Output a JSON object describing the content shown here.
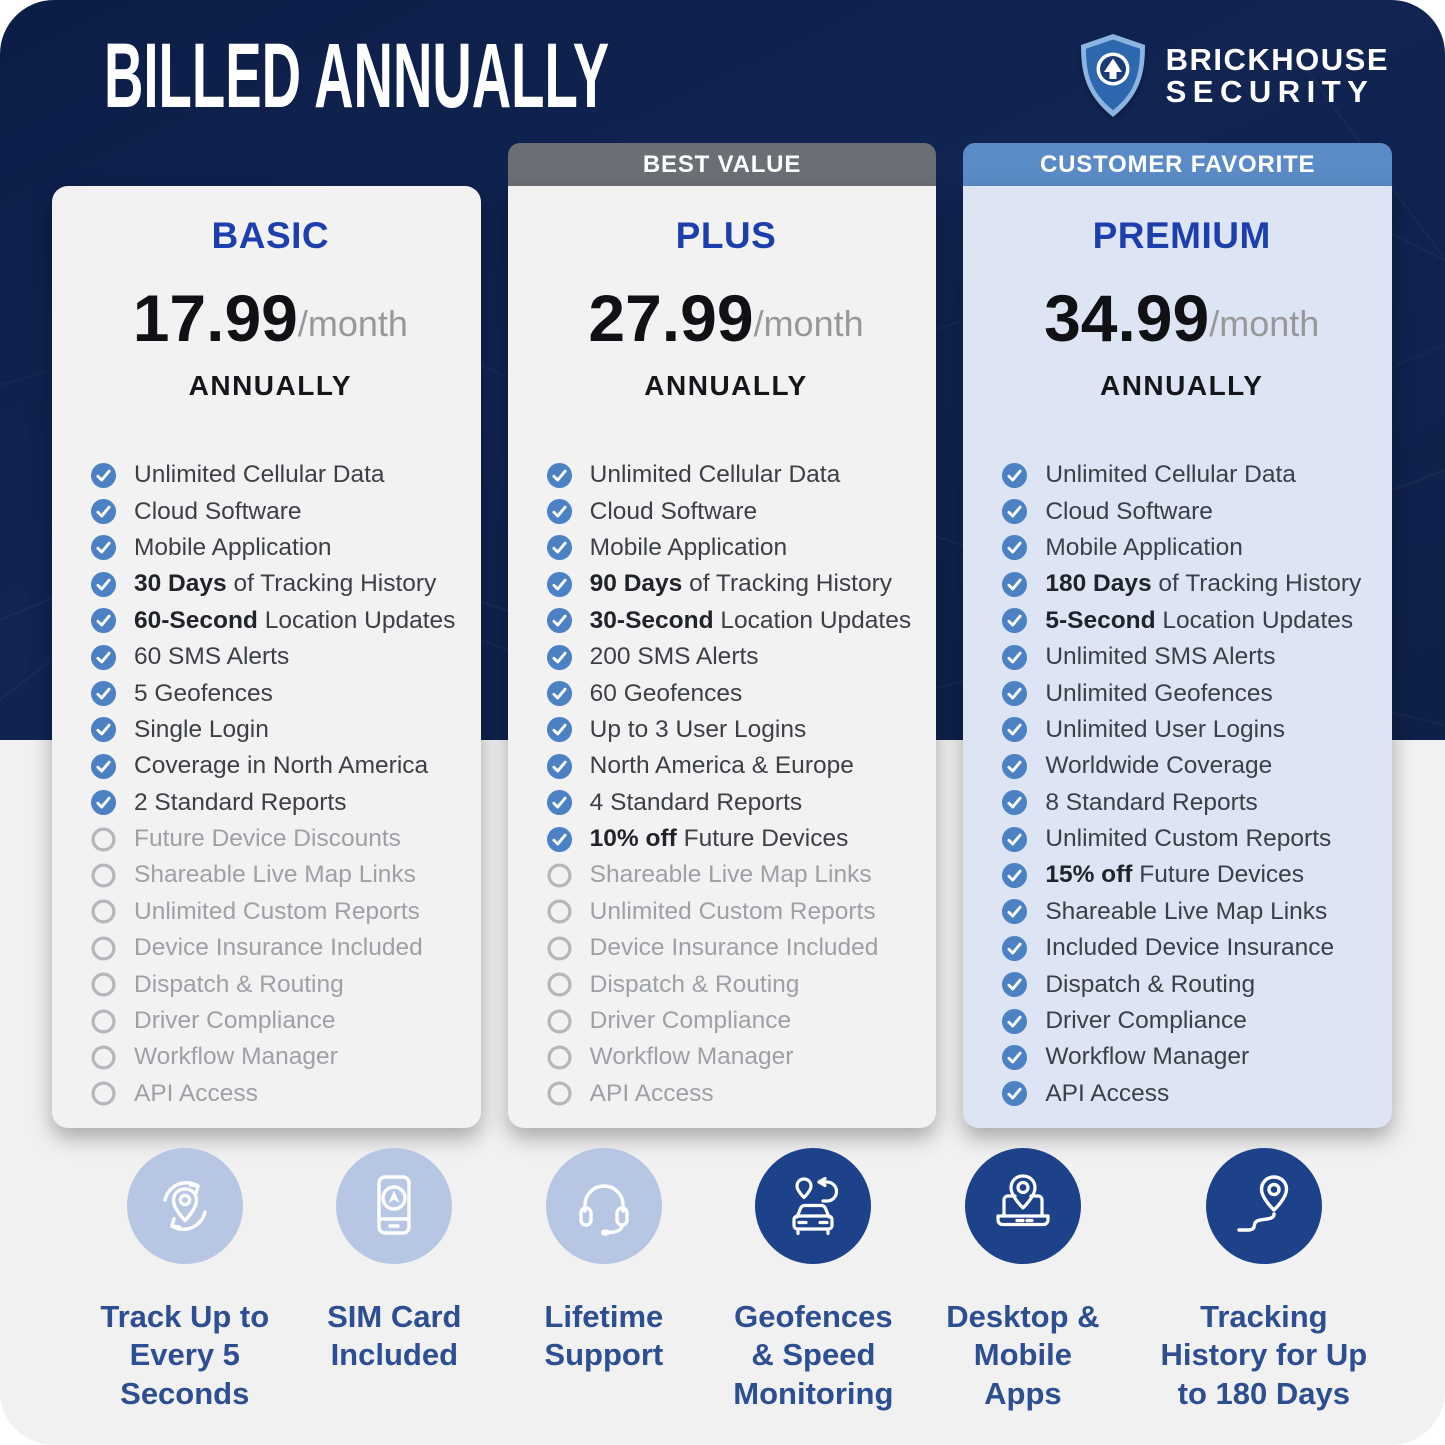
{
  "header": {
    "title": "BILLED ANNUALLY",
    "brand_line1": "BRICKHOUSE",
    "brand_line2": "SECURITY"
  },
  "plans": [
    {
      "badge": "",
      "name": "BASIC",
      "price": "17.99",
      "per": "/month",
      "billing": "ANNUALLY",
      "features": [
        {
          "checked": true,
          "bold": "",
          "text": "Unlimited Cellular Data"
        },
        {
          "checked": true,
          "bold": "",
          "text": "Cloud Software"
        },
        {
          "checked": true,
          "bold": "",
          "text": "Mobile Application"
        },
        {
          "checked": true,
          "bold": "30 Days",
          "text": " of Tracking History"
        },
        {
          "checked": true,
          "bold": "60-Second",
          "text": " Location Updates"
        },
        {
          "checked": true,
          "bold": "",
          "text": "60 SMS Alerts"
        },
        {
          "checked": true,
          "bold": "",
          "text": "5 Geofences"
        },
        {
          "checked": true,
          "bold": "",
          "text": "Single Login"
        },
        {
          "checked": true,
          "bold": "",
          "text": "Coverage in North America"
        },
        {
          "checked": true,
          "bold": "",
          "text": "2 Standard Reports"
        },
        {
          "checked": false,
          "bold": "",
          "text": "Future Device Discounts"
        },
        {
          "checked": false,
          "bold": "",
          "text": "Shareable Live Map Links"
        },
        {
          "checked": false,
          "bold": "",
          "text": "Unlimited Custom Reports"
        },
        {
          "checked": false,
          "bold": "",
          "text": "Device Insurance Included"
        },
        {
          "checked": false,
          "bold": "",
          "text": "Dispatch & Routing"
        },
        {
          "checked": false,
          "bold": "",
          "text": "Driver Compliance"
        },
        {
          "checked": false,
          "bold": "",
          "text": "Workflow Manager"
        },
        {
          "checked": false,
          "bold": "",
          "text": "API Access"
        }
      ]
    },
    {
      "badge": "BEST VALUE",
      "name": "PLUS",
      "price": "27.99",
      "per": "/month",
      "billing": "ANNUALLY",
      "features": [
        {
          "checked": true,
          "bold": "",
          "text": "Unlimited Cellular Data"
        },
        {
          "checked": true,
          "bold": "",
          "text": "Cloud Software"
        },
        {
          "checked": true,
          "bold": "",
          "text": "Mobile Application"
        },
        {
          "checked": true,
          "bold": "90 Days",
          "text": " of Tracking History"
        },
        {
          "checked": true,
          "bold": "30-Second",
          "text": " Location Updates"
        },
        {
          "checked": true,
          "bold": "",
          "text": "200 SMS Alerts"
        },
        {
          "checked": true,
          "bold": "",
          "text": "60 Geofences"
        },
        {
          "checked": true,
          "bold": "",
          "text": "Up to 3 User Logins"
        },
        {
          "checked": true,
          "bold": "",
          "text": "North America & Europe"
        },
        {
          "checked": true,
          "bold": "",
          "text": "4 Standard Reports"
        },
        {
          "checked": true,
          "bold": "10% off",
          "text": " Future Devices"
        },
        {
          "checked": false,
          "bold": "",
          "text": "Shareable Live Map Links"
        },
        {
          "checked": false,
          "bold": "",
          "text": "Unlimited Custom Reports"
        },
        {
          "checked": false,
          "bold": "",
          "text": "Device Insurance Included"
        },
        {
          "checked": false,
          "bold": "",
          "text": "Dispatch & Routing"
        },
        {
          "checked": false,
          "bold": "",
          "text": "Driver Compliance"
        },
        {
          "checked": false,
          "bold": "",
          "text": "Workflow Manager"
        },
        {
          "checked": false,
          "bold": "",
          "text": "API Access"
        }
      ]
    },
    {
      "badge": "CUSTOMER FAVORITE",
      "name": "PREMIUM",
      "price": "34.99",
      "per": "/month",
      "billing": "ANNUALLY",
      "features": [
        {
          "checked": true,
          "bold": "",
          "text": "Unlimited Cellular Data"
        },
        {
          "checked": true,
          "bold": "",
          "text": "Cloud Software"
        },
        {
          "checked": true,
          "bold": "",
          "text": "Mobile Application"
        },
        {
          "checked": true,
          "bold": "180 Days",
          "text": " of Tracking History"
        },
        {
          "checked": true,
          "bold": "5-Second",
          "text": " Location Updates"
        },
        {
          "checked": true,
          "bold": "",
          "text": "Unlimited SMS Alerts"
        },
        {
          "checked": true,
          "bold": "",
          "text": "Unlimited Geofences"
        },
        {
          "checked": true,
          "bold": "",
          "text": "Unlimited User Logins"
        },
        {
          "checked": true,
          "bold": "",
          "text": "Worldwide Coverage"
        },
        {
          "checked": true,
          "bold": "",
          "text": "8 Standard Reports"
        },
        {
          "checked": true,
          "bold": "",
          "text": "Unlimited Custom Reports"
        },
        {
          "checked": true,
          "bold": "15% off",
          "text": " Future Devices"
        },
        {
          "checked": true,
          "bold": "",
          "text": "Shareable Live Map Links"
        },
        {
          "checked": true,
          "bold": "",
          "text": "Included Device Insurance"
        },
        {
          "checked": true,
          "bold": "",
          "text": "Dispatch & Routing"
        },
        {
          "checked": true,
          "bold": "",
          "text": "Driver Compliance"
        },
        {
          "checked": true,
          "bold": "",
          "text": "Workflow Manager"
        },
        {
          "checked": true,
          "bold": "",
          "text": "API Access"
        }
      ]
    }
  ],
  "highlights": [
    {
      "icon": "refresh-pin",
      "style": "light",
      "label_lines": [
        "Track Up to",
        "Every 5",
        "Seconds"
      ]
    },
    {
      "icon": "phone-nav",
      "style": "light",
      "label_lines": [
        "SIM Card",
        "Included"
      ]
    },
    {
      "icon": "headset",
      "style": "light",
      "label_lines": [
        "Lifetime",
        "Support"
      ]
    },
    {
      "icon": "car-route",
      "style": "dark",
      "label_lines": [
        "Geofences",
        "& Speed",
        "Monitoring"
      ]
    },
    {
      "icon": "laptop-pin",
      "style": "dark",
      "label_lines": [
        "Desktop &",
        "Mobile",
        "Apps"
      ]
    },
    {
      "icon": "pin-route",
      "style": "dark",
      "label_lines": [
        "Tracking",
        "History for Up",
        "to 180 Days"
      ]
    }
  ],
  "colors": {
    "navy_background": "#0e2150",
    "card_background": "#f2f2f3",
    "premium_card_background": "#dde4f4",
    "badge_best_value": "#6b6f75",
    "badge_customer_favorite": "#5a8bc6",
    "plan_title_blue": "#1d3fae",
    "check_blue": "#4c82c3",
    "unchecked_ring": "#b4b7bb",
    "muted_feature_text": "#9da1a6",
    "highlight_label_blue": "#2d4e91",
    "icon_circle_light": "#b7c6e3",
    "icon_circle_dark": "#1d4289"
  }
}
